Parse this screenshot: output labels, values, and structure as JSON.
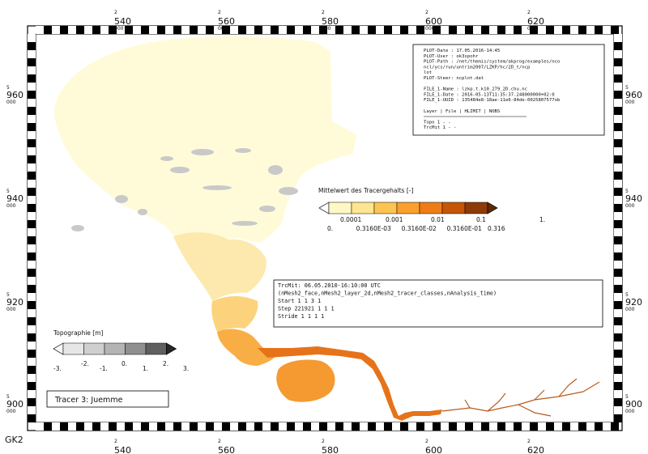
{
  "projection_label": "GK2",
  "grid": {
    "easting_prefix": "2",
    "easting_suffix": "000",
    "easting_km": [
      "540",
      "560",
      "580",
      "600",
      "620"
    ],
    "northing_prefix": "5",
    "northing_suffix": "000",
    "northing_km": [
      "960",
      "940",
      "920",
      "900"
    ]
  },
  "metadata_box": {
    "lines": [
      "PLOT-Date : 17.05.2016-14:45",
      "PLOT-User : ok3spohr",
      "PLOT-Path : /net/themis/system/akprog/examples/nco",
      "            ncl/ycs/run/untrim2007/LZKP/hc/2D_t/ncp",
      "            lot",
      "PLOT-Steer: ncplot.dat",
      "",
      "FILE_1-Name : lzkp.t.k10_279_2D.chu.nc",
      "FILE_1-Date : 2016-05-13T11:35:37.248000000+02:0",
      "FILE_1-UUID : 135484e8-18ae-11e6-84de-0025807577ob",
      "",
      "Layer  | File | HLIMIT | NOBS",
      "",
      "Topo       1      -         -",
      "TrcMit     1      -         -"
    ]
  },
  "tracer_legend": {
    "title": "Mittelwert des Tracergehalts [-]",
    "colors": [
      "#ffffff",
      "#fff7c4",
      "#fde691",
      "#fdc451",
      "#fba02c",
      "#ee7d17",
      "#c55507",
      "#8e3a07",
      "#5e2706"
    ],
    "labels_top": [
      "0.0001",
      "0.001",
      "0.01",
      "0.1",
      "1."
    ],
    "labels_bottom": [
      "0.",
      "0.3160E-03",
      "0.3160E-02",
      "0.3160E-01",
      "0.316"
    ]
  },
  "time_box": {
    "lines": [
      "TrcMit:  06.05.2010-16:10:00 UTC",
      "(nMesh2_face,nMesh2_layer_2d,nMesh2_tracer_classes,nAnalysis_time)",
      "Start         1        1        3        1",
      "Step     221921        1        1        1",
      "Stride        1        1        1        1"
    ]
  },
  "topo_legend": {
    "title": "Topographie [m]",
    "colors": [
      "#f7f7f7",
      "#e6e6e6",
      "#cfcfcf",
      "#b4b4b4",
      "#8f8f8f",
      "#5f5f5f",
      "#262626"
    ],
    "labels": [
      "-3.",
      "-2.",
      "-1.",
      "0.",
      "1.",
      "2.",
      "3."
    ]
  },
  "tracer_label": "Tracer 3: Juemme",
  "map_colors": {
    "background_sea": "#fffbd9",
    "upper_estuary": "#fde9ae",
    "mid_estuary": "#fcd37c",
    "lower_estuary": "#f9ae45",
    "harbour_basin": "#f59a30",
    "river": "#e67319",
    "tributary": "#b85a1c",
    "topography_grey": "#c9c9c9"
  }
}
